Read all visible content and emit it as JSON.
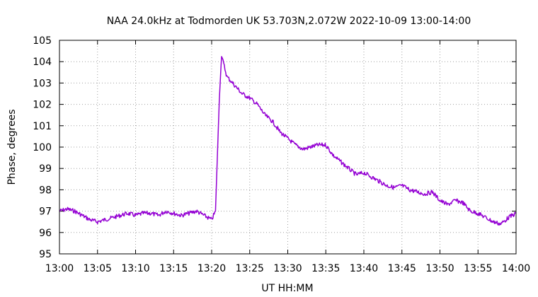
{
  "chart_data": {
    "type": "line",
    "title": "NAA 24.0kHz at Todmorden UK 53.703N,2.072W  2022-10-09 13:00-14:00",
    "xlabel": "UT HH:MM",
    "ylabel": "Phase, degrees",
    "xlim": [
      "13:00",
      "14:00"
    ],
    "ylim": [
      95,
      105
    ],
    "x_ticks": [
      "13:00",
      "13:05",
      "13:10",
      "13:15",
      "13:20",
      "13:25",
      "13:30",
      "13:35",
      "13:40",
      "13:45",
      "13:50",
      "13:55",
      "14:00"
    ],
    "y_ticks": [
      "95",
      "96",
      "97",
      "98",
      "99",
      "100",
      "101",
      "102",
      "103",
      "104",
      "105"
    ],
    "grid": true,
    "legend": "none",
    "series_color": "#9400d3",
    "series": [
      {
        "x": [
          "13:00",
          "13:01",
          "13:02",
          "13:03",
          "13:04",
          "13:05",
          "13:06",
          "13:07",
          "13:08",
          "13:09",
          "13:10",
          "13:11",
          "13:12",
          "13:13",
          "13:14",
          "13:15",
          "13:16",
          "13:17",
          "13:18",
          "13:19",
          "13:20",
          "13:20.5",
          "13:21",
          "13:21.3",
          "13:21.5",
          "13:22",
          "13:23",
          "13:24",
          "13:25",
          "13:26",
          "13:27",
          "13:28",
          "13:29",
          "13:30",
          "13:31",
          "13:32",
          "13:33",
          "13:34",
          "13:35",
          "13:36",
          "13:37",
          "13:38",
          "13:39",
          "13:40",
          "13:41",
          "13:42",
          "13:43",
          "13:44",
          "13:45",
          "13:46",
          "13:47",
          "13:48",
          "13:49",
          "13:50",
          "13:51",
          "13:52",
          "13:53",
          "13:54",
          "13:55",
          "13:56",
          "13:57",
          "13:58",
          "13:59",
          "14:00"
        ],
        "values": [
          97.0,
          97.1,
          97.0,
          96.8,
          96.6,
          96.5,
          96.6,
          96.7,
          96.8,
          96.9,
          96.8,
          96.9,
          96.9,
          96.8,
          97.0,
          96.9,
          96.8,
          96.9,
          97.0,
          96.8,
          96.6,
          97.0,
          102.2,
          104.3,
          104.0,
          103.3,
          102.9,
          102.5,
          102.3,
          102.0,
          101.5,
          101.2,
          100.7,
          100.4,
          100.1,
          99.9,
          100.0,
          100.1,
          100.1,
          99.6,
          99.3,
          99.0,
          98.7,
          98.8,
          98.6,
          98.4,
          98.2,
          98.1,
          98.2,
          98.0,
          97.9,
          97.8,
          97.9,
          97.5,
          97.3,
          97.5,
          97.4,
          97.0,
          96.9,
          96.7,
          96.5,
          96.4,
          96.7,
          96.9
        ]
      }
    ]
  }
}
